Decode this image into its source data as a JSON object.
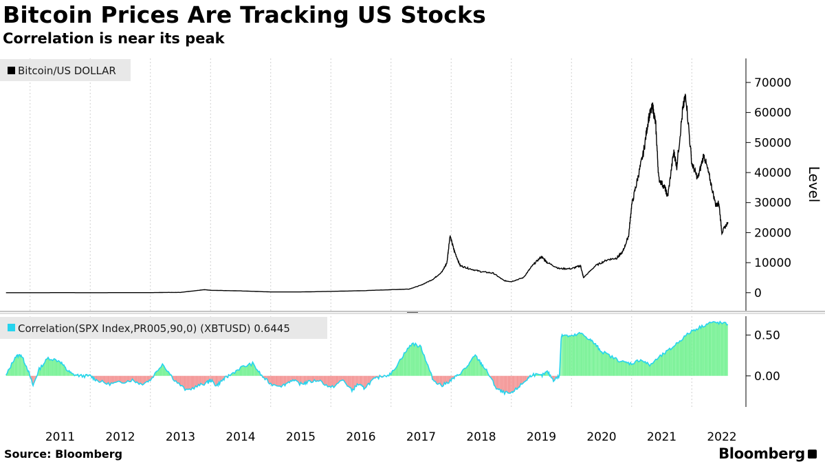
{
  "title": "Bitcoin Prices Are Tracking US Stocks",
  "subtitle": "Correlation is near its peak",
  "source": "Source: Bloomberg",
  "brand": "Bloomberg",
  "chart_data": [
    {
      "type": "line",
      "legend": "Bitcoin/US DOLLAR",
      "ylabel": "Level",
      "color": "#000000",
      "ylim": [
        -6000,
        78000
      ],
      "yticks": [
        0,
        10000,
        20000,
        30000,
        40000,
        50000,
        60000,
        70000
      ],
      "grid": true,
      "legend_placement": "top-left",
      "x": [
        2010.6,
        2011.0,
        2011.3,
        2011.45,
        2011.6,
        2012.0,
        2012.5,
        2013.0,
        2013.3,
        2013.5,
        2013.9,
        2014.0,
        2014.5,
        2015.0,
        2015.5,
        2016.0,
        2016.5,
        2017.0,
        2017.3,
        2017.5,
        2017.7,
        2017.85,
        2017.93,
        2017.98,
        2018.05,
        2018.15,
        2018.3,
        2018.5,
        2018.7,
        2018.88,
        2019.0,
        2019.2,
        2019.35,
        2019.5,
        2019.6,
        2019.8,
        2020.0,
        2020.15,
        2020.2,
        2020.4,
        2020.6,
        2020.75,
        2020.85,
        2020.95,
        2021.0,
        2021.1,
        2021.2,
        2021.28,
        2021.35,
        2021.4,
        2021.45,
        2021.55,
        2021.6,
        2021.7,
        2021.75,
        2021.85,
        2021.9,
        2022.0,
        2022.1,
        2022.2,
        2022.3,
        2022.4,
        2022.45,
        2022.5,
        2022.6
      ],
      "y": [
        0,
        0,
        3,
        30,
        10,
        5,
        10,
        15,
        100,
        100,
        1000,
        800,
        600,
        250,
        250,
        430,
        650,
        1000,
        1200,
        2500,
        4500,
        7000,
        10000,
        19000,
        14000,
        9000,
        8000,
        7000,
        6500,
        4000,
        3700,
        5000,
        9000,
        12000,
        10000,
        8000,
        8000,
        9000,
        5000,
        9000,
        11000,
        11500,
        13500,
        19000,
        29000,
        38000,
        47000,
        58000,
        62000,
        56000,
        38000,
        35000,
        32000,
        47000,
        42000,
        61000,
        66000,
        43000,
        38000,
        46000,
        38000,
        29000,
        30000,
        20000,
        23500
      ]
    },
    {
      "type": "area",
      "legend": "Correlation(SPX Index,PR005,90,0) (XBTUSD) 0.6445",
      "last_value": "0.6445",
      "positive_color": "#7ef29a",
      "negative_color": "#f49a9a",
      "line_color": "#25d4ee",
      "ylim": [
        -0.38,
        0.73
      ],
      "yticks": [
        "0.00",
        "0.50"
      ],
      "x": [
        2010.6,
        2010.75,
        2010.85,
        2010.95,
        2011.05,
        2011.15,
        2011.3,
        2011.5,
        2011.6,
        2011.7,
        2011.85,
        2012.0,
        2012.1,
        2012.3,
        2012.5,
        2012.7,
        2012.85,
        2013.0,
        2013.2,
        2013.4,
        2013.6,
        2013.8,
        2013.95,
        2014.0,
        2014.1,
        2014.2,
        2014.3,
        2014.5,
        2014.7,
        2014.85,
        2015.0,
        2015.2,
        2015.35,
        2015.5,
        2015.6,
        2015.8,
        2016.0,
        2016.2,
        2016.35,
        2016.45,
        2016.55,
        2016.7,
        2016.85,
        2017.0,
        2017.2,
        2017.35,
        2017.5,
        2017.6,
        2017.7,
        2017.85,
        2018.0,
        2018.1,
        2018.25,
        2018.4,
        2018.5,
        2018.6,
        2018.75,
        2018.85,
        2019.0,
        2019.1,
        2019.25,
        2019.35,
        2019.5,
        2019.6,
        2019.7,
        2019.8,
        2019.83,
        2019.85,
        2020.0,
        2020.15,
        2020.3,
        2020.4,
        2020.5,
        2020.7,
        2020.85,
        2021.0,
        2021.15,
        2021.3,
        2021.5,
        2021.65,
        2021.8,
        2022.0,
        2022.15,
        2022.3,
        2022.45,
        2022.6
      ],
      "y": [
        0.0,
        0.23,
        0.26,
        0.1,
        -0.12,
        0.08,
        0.22,
        0.18,
        0.08,
        0.02,
        0.0,
        0.0,
        -0.05,
        -0.1,
        -0.08,
        -0.05,
        -0.1,
        -0.05,
        0.15,
        -0.05,
        -0.18,
        -0.12,
        -0.08,
        -0.05,
        -0.12,
        -0.05,
        0.0,
        0.1,
        0.15,
        0.0,
        -0.1,
        -0.12,
        -0.05,
        -0.1,
        -0.08,
        -0.05,
        -0.15,
        -0.05,
        -0.18,
        -0.1,
        -0.15,
        -0.05,
        0.0,
        0.02,
        0.25,
        0.4,
        0.35,
        0.15,
        -0.05,
        -0.12,
        -0.05,
        0.0,
        0.1,
        0.25,
        0.15,
        0.05,
        -0.15,
        -0.2,
        -0.22,
        -0.15,
        -0.05,
        0.02,
        0.0,
        0.05,
        -0.05,
        0.0,
        0.48,
        0.5,
        0.48,
        0.52,
        0.45,
        0.38,
        0.3,
        0.22,
        0.17,
        0.15,
        0.2,
        0.13,
        0.25,
        0.33,
        0.43,
        0.55,
        0.6,
        0.65,
        0.65,
        0.63
      ]
    }
  ],
  "x_axis": {
    "ticks": [
      "2011",
      "2012",
      "2013",
      "2014",
      "2015",
      "2016",
      "2017",
      "2018",
      "2019",
      "2020",
      "2021",
      "2022"
    ]
  }
}
